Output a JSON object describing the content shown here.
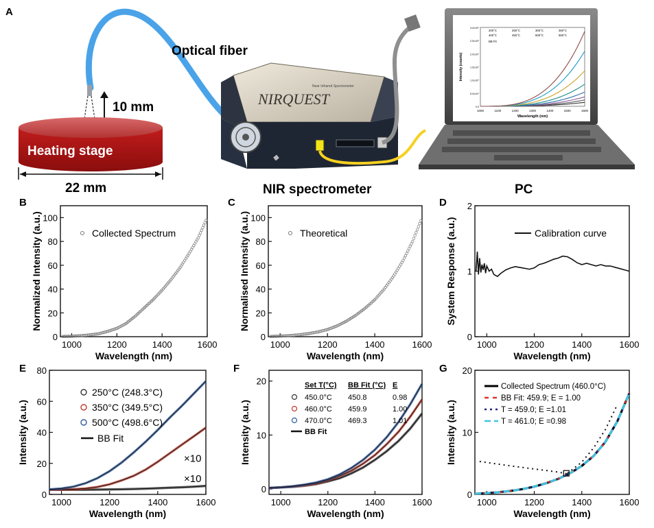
{
  "panel_a": {
    "label": "A",
    "optical_fiber": "Optical fiber",
    "distance": "10 mm",
    "heating_stage": "Heating stage",
    "width": "22 mm",
    "spectrometer_brand": "NIRQUEST",
    "spectrometer_sub": "Near Infrared Spectrometer",
    "nir_spectrometer": "NIR spectrometer",
    "pc": "PC",
    "screen_plot": {
      "ylabel": "Intensity (counts)",
      "xlabel": "Wavelength (nm)",
      "xticks": [
        "1000",
        "1100",
        "1200",
        "1300",
        "1400",
        "1500",
        "1600"
      ],
      "yticks": [
        "0.0",
        "5.0x10⁴",
        "1.0x10⁵",
        "1.5x10⁵",
        "2.0x10⁵",
        "2.5x10⁵",
        "3.0x10⁵"
      ],
      "legend": [
        "200°C",
        "250°C",
        "300°C",
        "350°C",
        "400°C",
        "450°C",
        "500°C",
        "550°C"
      ],
      "fit_label": "BB Fit"
    }
  },
  "chart_data": [
    {
      "panel": "B",
      "type": "scatter",
      "xlabel": "Wavelength (nm)",
      "ylabel": "Normalized Intensity (a.u.)",
      "xlim": [
        950,
        1600
      ],
      "ylim": [
        0,
        110
      ],
      "xticks": [
        "1000",
        "1200",
        "1400",
        "1600"
      ],
      "yticks": [
        "0",
        "20",
        "40",
        "60",
        "80",
        "100"
      ],
      "legend": [
        "Collected Spectrum"
      ],
      "x": [
        960,
        1000,
        1040,
        1080,
        1120,
        1160,
        1200,
        1240,
        1280,
        1320,
        1360,
        1400,
        1440,
        1480,
        1520,
        1560,
        1600
      ],
      "y": [
        0.2,
        0.4,
        0.8,
        1.5,
        2.5,
        4.5,
        7,
        11,
        17,
        24,
        31,
        39,
        48,
        58,
        70,
        83,
        100
      ]
    },
    {
      "panel": "C",
      "type": "scatter",
      "xlabel": "Wavelength (nm)",
      "ylabel": "Normalised Intensity (a.u.)",
      "xlim": [
        950,
        1600
      ],
      "ylim": [
        0,
        110
      ],
      "xticks": [
        "1000",
        "1200",
        "1400",
        "1600"
      ],
      "yticks": [
        "0",
        "20",
        "40",
        "60",
        "80",
        "100"
      ],
      "legend": [
        "Theoretical"
      ],
      "x": [
        960,
        1000,
        1040,
        1080,
        1120,
        1160,
        1200,
        1240,
        1280,
        1320,
        1360,
        1400,
        1440,
        1480,
        1520,
        1560,
        1600
      ],
      "y": [
        0.2,
        0.5,
        0.9,
        1.6,
        2.6,
        4,
        6,
        9,
        13,
        18,
        24,
        31,
        40,
        51,
        64,
        80,
        100
      ]
    },
    {
      "panel": "D",
      "type": "line",
      "xlabel": "Wavelength (nm)",
      "ylabel": "System Response (a.u.)",
      "xlim": [
        950,
        1600
      ],
      "ylim": [
        0,
        2
      ],
      "xticks": [
        "1000",
        "1200",
        "1400",
        "1600"
      ],
      "yticks": [
        "0",
        "1",
        "2"
      ],
      "legend": [
        "Calibration curve"
      ],
      "x": [
        955,
        960,
        965,
        970,
        975,
        980,
        985,
        990,
        995,
        1000,
        1010,
        1020,
        1030,
        1045,
        1060,
        1080,
        1100,
        1120,
        1150,
        1180,
        1200,
        1220,
        1240,
        1260,
        1280,
        1300,
        1320,
        1340,
        1360,
        1380,
        1400,
        1420,
        1440,
        1460,
        1480,
        1500,
        1520,
        1540,
        1560,
        1580,
        1600
      ],
      "y": [
        1.0,
        1.3,
        0.95,
        1.2,
        0.98,
        1.1,
        1.02,
        1.12,
        0.97,
        1.08,
        1.0,
        1.03,
        0.95,
        0.92,
        0.97,
        1.02,
        1.05,
        1.07,
        1.05,
        1.03,
        1.05,
        1.1,
        1.12,
        1.15,
        1.18,
        1.2,
        1.23,
        1.22,
        1.18,
        1.13,
        1.1,
        1.12,
        1.1,
        1.08,
        1.1,
        1.08,
        1.08,
        1.06,
        1.04,
        1.02,
        1.0
      ]
    },
    {
      "panel": "E",
      "type": "line",
      "xlabel": "Wavelength (nm)",
      "ylabel": "Intensity (a.u.)",
      "xlim": [
        950,
        1600
      ],
      "ylim": [
        0,
        80
      ],
      "xticks": [
        "1000",
        "1200",
        "1400",
        "1600"
      ],
      "yticks": [
        "0",
        "20",
        "40",
        "60",
        "80"
      ],
      "x": [
        950,
        1000,
        1050,
        1100,
        1150,
        1200,
        1250,
        1300,
        1350,
        1400,
        1450,
        1500,
        1550,
        1600
      ],
      "series": [
        {
          "name": "250°C (248.3°C)",
          "color": "#333333",
          "values": [
            3.0,
            3.0,
            3.0,
            3.0,
            3.1,
            3.2,
            3.3,
            3.5,
            3.7,
            4.0,
            4.3,
            4.6,
            5.0,
            5.5
          ]
        },
        {
          "name": "350°C (349.5°C)",
          "color": "#c0392b",
          "values": [
            3.0,
            3.1,
            3.3,
            3.8,
            4.8,
            6.5,
            9.0,
            12.0,
            16.0,
            21.0,
            26.5,
            32.0,
            37.5,
            43.0
          ]
        },
        {
          "name": "500°C (498.6°C)",
          "color": "#2c5aa0",
          "values": [
            3.2,
            3.8,
            5.0,
            7.2,
            10.5,
            15.0,
            20.5,
            27.0,
            34.0,
            41.5,
            49.5,
            57.0,
            65.0,
            73.0
          ]
        }
      ],
      "fit_label": "BB Fit",
      "annotations": [
        "×10",
        "×10"
      ]
    },
    {
      "panel": "F",
      "type": "line",
      "xlabel": "Wavelength (nm)",
      "ylabel": "Intensity (a.u.)",
      "xlim": [
        950,
        1600
      ],
      "ylim": [
        -1,
        22
      ],
      "xticks": [
        "1000",
        "1200",
        "1400",
        "1600"
      ],
      "yticks": [
        "0",
        "10",
        "20"
      ],
      "x": [
        950,
        1000,
        1050,
        1100,
        1150,
        1200,
        1250,
        1300,
        1350,
        1400,
        1450,
        1500,
        1550,
        1600
      ],
      "table_headers": [
        "Set T(°C)",
        "BB Fit (°C)",
        "E"
      ],
      "series": [
        {
          "name": "450.0°C",
          "fit": "450.8",
          "e": "0.98",
          "color": "#333333",
          "values": [
            0.2,
            0.3,
            0.4,
            0.6,
            0.9,
            1.4,
            2.0,
            2.9,
            4.0,
            5.4,
            7.0,
            8.9,
            11.2,
            14.0
          ]
        },
        {
          "name": "460.0°C",
          "fit": "459.9",
          "e": "1.00",
          "color": "#c0392b",
          "values": [
            0.2,
            0.3,
            0.5,
            0.7,
            1.0,
            1.6,
            2.4,
            3.4,
            4.7,
            6.3,
            8.3,
            10.6,
            13.4,
            16.6
          ]
        },
        {
          "name": "470.0°C",
          "fit": "469.3",
          "e": "1.01",
          "color": "#2c5aa0",
          "values": [
            0.2,
            0.3,
            0.5,
            0.8,
            1.2,
            1.8,
            2.7,
            3.9,
            5.4,
            7.3,
            9.6,
            12.4,
            15.7,
            19.5
          ]
        }
      ],
      "fit_label": "BB Fit"
    },
    {
      "panel": "G",
      "type": "line",
      "xlabel": "Wavelength (nm)",
      "ylabel": "Intensity (a.u.)",
      "xlim": [
        950,
        1600
      ],
      "ylim": [
        0,
        20
      ],
      "xticks": [
        "1000",
        "1200",
        "1400",
        "1600"
      ],
      "yticks": [
        "0",
        "10",
        "20"
      ],
      "x": [
        950,
        1000,
        1050,
        1100,
        1150,
        1200,
        1250,
        1300,
        1350,
        1400,
        1450,
        1500,
        1550,
        1600
      ],
      "series": [
        {
          "name": "Collected Spectrum (460.0°C)",
          "color": "#000000",
          "values": [
            0.1,
            0.2,
            0.35,
            0.55,
            0.85,
            1.25,
            1.8,
            2.5,
            3.4,
            4.6,
            6.2,
            8.5,
            11.8,
            16.3
          ]
        },
        {
          "name": "BB Fit: 459.9; E = 1.00",
          "color": "#e03030",
          "values": [
            0.1,
            0.2,
            0.35,
            0.55,
            0.85,
            1.25,
            1.8,
            2.5,
            3.4,
            4.6,
            6.2,
            8.5,
            11.8,
            16.3
          ]
        },
        {
          "name": "T = 459.0; E =1.01",
          "color": "#1a237e",
          "values": [
            0.1,
            0.2,
            0.35,
            0.55,
            0.85,
            1.25,
            1.8,
            2.5,
            3.4,
            4.6,
            6.2,
            8.5,
            11.8,
            16.3
          ]
        },
        {
          "name": "T = 461.0; E =0.98",
          "color": "#40c4e0",
          "values": [
            0.1,
            0.2,
            0.35,
            0.55,
            0.85,
            1.25,
            1.8,
            2.5,
            3.4,
            4.6,
            6.2,
            8.5,
            11.8,
            16.3
          ]
        }
      ],
      "inset_dotted": {
        "x": [
          970,
          1100,
          1200,
          1300,
          1340
        ],
        "y": [
          5.3,
          4.6,
          4.1,
          3.6,
          3.3
        ]
      },
      "inset_rise": {
        "x": [
          1340,
          1400,
          1450,
          1500,
          1550
        ],
        "y": [
          3.4,
          5.2,
          7.5,
          10.5,
          14.5
        ]
      },
      "marker": {
        "x": 1335,
        "y": 3.4
      }
    }
  ]
}
